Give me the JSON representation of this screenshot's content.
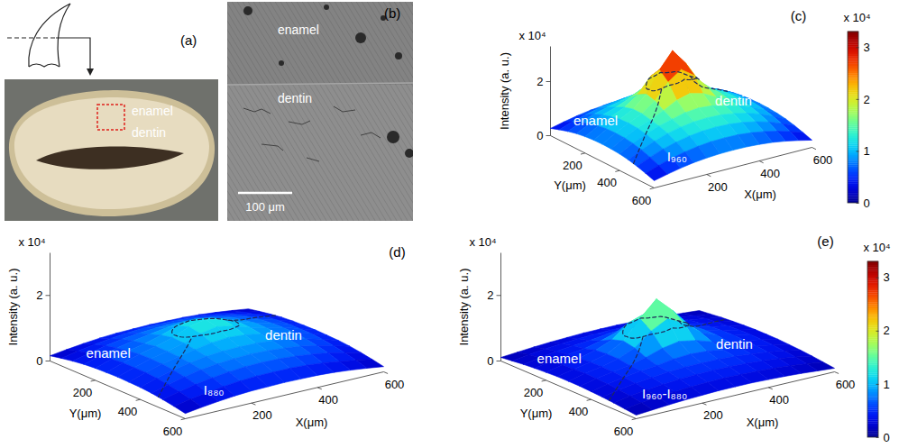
{
  "images": [
    {
      "panel": "(a)",
      "labels": [
        "enamel",
        "dentin"
      ]
    },
    {
      "panel": "(b)",
      "labels": [
        "enamel",
        "dentin"
      ],
      "scale_bar": "100 μm"
    }
  ],
  "chart_data": [
    {
      "type": "surface",
      "panel": "(c)",
      "xlabel": "X(μm)",
      "ylabel": "Y(μm)",
      "zlabel": "Intensity (a. u.)",
      "z_multiplier": "x 10⁴",
      "x": [
        0,
        50,
        100,
        150,
        200,
        250,
        300,
        350,
        400,
        450,
        500,
        550,
        600
      ],
      "y": [
        0,
        50,
        100,
        150,
        200,
        250,
        300,
        350,
        400,
        450,
        500,
        550,
        600
      ],
      "z": [
        [
          0.27,
          0.38,
          0.48,
          0.56,
          0.61,
          0.64,
          0.65,
          0.64,
          0.61,
          0.56,
          0.48,
          0.38,
          0.27
        ],
        [
          0.38,
          0.55,
          0.69,
          0.8,
          0.88,
          0.93,
          0.94,
          0.93,
          0.88,
          0.8,
          0.69,
          0.55,
          0.38
        ],
        [
          0.48,
          0.69,
          0.87,
          1.0,
          1.1,
          1.21,
          1.25,
          1.21,
          1.1,
          1.0,
          0.87,
          0.69,
          0.48
        ],
        [
          0.56,
          0.8,
          1.0,
          1.16,
          1.36,
          1.6,
          1.73,
          1.6,
          1.36,
          1.16,
          1.0,
          0.8,
          0.56
        ],
        [
          0.61,
          0.88,
          1.1,
          1.32,
          1.66,
          2.22,
          2.46,
          2.22,
          1.66,
          1.32,
          1.1,
          0.88,
          0.61
        ],
        [
          0.64,
          0.93,
          1.16,
          1.41,
          1.84,
          2.61,
          3.2,
          2.61,
          1.84,
          1.41,
          1.16,
          0.93,
          0.64
        ],
        [
          0.65,
          0.94,
          1.18,
          1.41,
          1.75,
          2.32,
          2.66,
          2.32,
          1.75,
          1.41,
          1.18,
          0.94,
          0.65
        ],
        [
          0.64,
          0.93,
          1.16,
          1.34,
          1.56,
          1.81,
          1.94,
          1.81,
          1.56,
          1.34,
          1.16,
          0.93,
          0.64
        ],
        [
          0.61,
          0.88,
          1.1,
          1.27,
          1.4,
          1.52,
          1.56,
          1.52,
          1.4,
          1.27,
          1.1,
          0.88,
          0.61
        ],
        [
          0.56,
          0.8,
          1.0,
          1.16,
          1.27,
          1.34,
          1.36,
          1.34,
          1.27,
          1.16,
          1.0,
          0.8,
          0.56
        ],
        [
          0.48,
          0.69,
          0.87,
          1.0,
          1.1,
          1.16,
          1.18,
          1.16,
          1.1,
          1.0,
          0.87,
          0.69,
          0.48
        ],
        [
          0.38,
          0.55,
          0.69,
          0.8,
          0.88,
          0.93,
          0.94,
          0.93,
          0.88,
          0.8,
          0.69,
          0.55,
          0.38
        ],
        [
          0.27,
          0.38,
          0.48,
          0.56,
          0.61,
          0.64,
          0.65,
          0.64,
          0.61,
          0.56,
          0.48,
          0.38,
          0.27
        ]
      ],
      "xlim": [
        0,
        600
      ],
      "xticks": [
        200,
        400,
        600
      ],
      "ylim": [
        0,
        600
      ],
      "yticks": [
        200,
        400,
        600
      ],
      "zlim": [
        0,
        3.3
      ],
      "zticks": [
        0,
        2
      ],
      "clim": [
        0,
        3.3
      ],
      "colorbar_ticks": [
        0,
        1,
        2,
        3
      ],
      "colorbar_multiplier": "x 10⁴",
      "annotations": [
        {
          "text": "enamel",
          "x": 40,
          "y": 200
        },
        {
          "text": "dentin",
          "x": 420,
          "y": 420
        },
        {
          "text": "I₉₆₀",
          "x": 100,
          "y": 580
        }
      ],
      "boundary": [
        [
          [
            0,
            480
          ],
          [
            228,
            295
          ]
        ],
        [
          [
            385,
            225
          ],
          [
            600,
            120
          ]
        ]
      ],
      "region": {
        "center": [
          300,
          250
        ],
        "radii": [
          90,
          70
        ]
      }
    },
    {
      "type": "surface",
      "panel": "(d)",
      "xlabel": "X(μm)",
      "ylabel": "Y(μm)",
      "zlabel": "Intensity (a. u.)",
      "z_multiplier": "x 10⁴",
      "x": [
        0,
        50,
        100,
        150,
        200,
        250,
        300,
        350,
        400,
        450,
        500,
        550,
        600
      ],
      "y": [
        0,
        50,
        100,
        150,
        200,
        250,
        300,
        350,
        400,
        450,
        500,
        550,
        600
      ],
      "z": [
        [
          0.16,
          0.23,
          0.29,
          0.34,
          0.37,
          0.38,
          0.39,
          0.38,
          0.37,
          0.34,
          0.29,
          0.23,
          0.16
        ],
        [
          0.23,
          0.33,
          0.41,
          0.48,
          0.53,
          0.56,
          0.56,
          0.56,
          0.53,
          0.48,
          0.41,
          0.33,
          0.23
        ],
        [
          0.29,
          0.41,
          0.52,
          0.6,
          0.66,
          0.7,
          0.71,
          0.7,
          0.66,
          0.6,
          0.52,
          0.41,
          0.29
        ],
        [
          0.34,
          0.48,
          0.6,
          0.7,
          0.78,
          0.86,
          0.91,
          0.86,
          0.78,
          0.7,
          0.6,
          0.48,
          0.34
        ],
        [
          0.37,
          0.53,
          0.66,
          0.76,
          0.9,
          1.06,
          1.14,
          1.06,
          0.9,
          0.76,
          0.66,
          0.53,
          0.37
        ],
        [
          0.38,
          0.56,
          0.7,
          0.82,
          0.97,
          1.18,
          1.29,
          1.18,
          0.97,
          0.82,
          0.7,
          0.56,
          0.38
        ],
        [
          0.39,
          0.56,
          0.71,
          0.82,
          0.95,
          1.12,
          1.21,
          1.12,
          0.95,
          0.82,
          0.71,
          0.56,
          0.39
        ],
        [
          0.38,
          0.56,
          0.7,
          0.8,
          0.9,
          0.99,
          1.03,
          0.99,
          0.9,
          0.8,
          0.7,
          0.56,
          0.38
        ],
        [
          0.37,
          0.53,
          0.66,
          0.76,
          0.84,
          0.88,
          0.89,
          0.88,
          0.84,
          0.76,
          0.66,
          0.53,
          0.37
        ],
        [
          0.34,
          0.48,
          0.6,
          0.7,
          0.76,
          0.8,
          0.82,
          0.8,
          0.76,
          0.7,
          0.6,
          0.48,
          0.34
        ],
        [
          0.29,
          0.41,
          0.52,
          0.6,
          0.66,
          0.7,
          0.71,
          0.7,
          0.66,
          0.6,
          0.52,
          0.41,
          0.29
        ],
        [
          0.23,
          0.33,
          0.41,
          0.48,
          0.53,
          0.56,
          0.56,
          0.56,
          0.53,
          0.48,
          0.41,
          0.33,
          0.23
        ],
        [
          0.16,
          0.23,
          0.29,
          0.34,
          0.37,
          0.38,
          0.39,
          0.38,
          0.37,
          0.34,
          0.29,
          0.23,
          0.16
        ]
      ],
      "xlim": [
        0,
        600
      ],
      "xticks": [
        200,
        400,
        600
      ],
      "ylim": [
        0,
        600
      ],
      "yticks": [
        200,
        400,
        600
      ],
      "zlim": [
        0,
        3.3
      ],
      "zticks": [
        0,
        2
      ],
      "clim": [
        0,
        3.3
      ],
      "annotations": [
        {
          "text": "enamel",
          "x": 40,
          "y": 200
        },
        {
          "text": "dentin",
          "x": 420,
          "y": 420
        },
        {
          "text": "I₈₈₀",
          "x": 100,
          "y": 580
        }
      ],
      "boundary": [
        [
          [
            0,
            480
          ],
          [
            228,
            295
          ]
        ],
        [
          [
            385,
            225
          ],
          [
            600,
            120
          ]
        ]
      ],
      "region": {
        "center": [
          300,
          250
        ],
        "radii": [
          90,
          70
        ]
      }
    },
    {
      "type": "surface",
      "panel": "(e)",
      "xlabel": "X(μm)",
      "ylabel": "Y(μm)",
      "zlabel": "Intensity (a. u.)",
      "z_multiplier": "x 10⁴",
      "x": [
        0,
        50,
        100,
        150,
        200,
        250,
        300,
        350,
        400,
        450,
        500,
        550,
        600
      ],
      "y": [
        0,
        50,
        100,
        150,
        200,
        250,
        300,
        350,
        400,
        450,
        500,
        550,
        600
      ],
      "z": [
        [
          0.11,
          0.15,
          0.19,
          0.22,
          0.24,
          0.26,
          0.26,
          0.26,
          0.24,
          0.22,
          0.19,
          0.15,
          0.11
        ],
        [
          0.15,
          0.22,
          0.28,
          0.32,
          0.35,
          0.37,
          0.38,
          0.37,
          0.35,
          0.32,
          0.28,
          0.22,
          0.15
        ],
        [
          0.19,
          0.28,
          0.35,
          0.4,
          0.44,
          0.51,
          0.54,
          0.51,
          0.44,
          0.4,
          0.35,
          0.28,
          0.19
        ],
        [
          0.22,
          0.32,
          0.4,
          0.46,
          0.58,
          0.74,
          0.82,
          0.74,
          0.58,
          0.46,
          0.4,
          0.32,
          0.22
        ],
        [
          0.24,
          0.35,
          0.44,
          0.56,
          0.76,
          1.16,
          1.32,
          1.16,
          0.76,
          0.56,
          0.44,
          0.35,
          0.24
        ],
        [
          0.26,
          0.37,
          0.46,
          0.59,
          0.87,
          1.43,
          1.91,
          1.43,
          0.87,
          0.59,
          0.46,
          0.37,
          0.26
        ],
        [
          0.26,
          0.38,
          0.47,
          0.59,
          0.8,
          1.2,
          1.45,
          1.2,
          0.8,
          0.59,
          0.47,
          0.38,
          0.26
        ],
        [
          0.26,
          0.37,
          0.46,
          0.54,
          0.66,
          0.82,
          0.91,
          0.82,
          0.66,
          0.54,
          0.46,
          0.37,
          0.26
        ],
        [
          0.24,
          0.35,
          0.44,
          0.51,
          0.56,
          0.64,
          0.67,
          0.64,
          0.56,
          0.51,
          0.44,
          0.35,
          0.24
        ],
        [
          0.22,
          0.32,
          0.4,
          0.46,
          0.51,
          0.54,
          0.54,
          0.54,
          0.51,
          0.46,
          0.4,
          0.32,
          0.22
        ],
        [
          0.19,
          0.28,
          0.35,
          0.4,
          0.44,
          0.46,
          0.47,
          0.46,
          0.44,
          0.4,
          0.35,
          0.28,
          0.19
        ],
        [
          0.15,
          0.22,
          0.28,
          0.32,
          0.35,
          0.37,
          0.38,
          0.37,
          0.35,
          0.32,
          0.28,
          0.22,
          0.15
        ],
        [
          0.11,
          0.15,
          0.19,
          0.22,
          0.24,
          0.26,
          0.26,
          0.26,
          0.24,
          0.22,
          0.19,
          0.15,
          0.11
        ]
      ],
      "xlim": [
        0,
        600
      ],
      "xticks": [
        200,
        400,
        600
      ],
      "ylim": [
        0,
        600
      ],
      "yticks": [
        200,
        400,
        600
      ],
      "zlim": [
        0,
        3.3
      ],
      "zticks": [
        0,
        2
      ],
      "clim": [
        0,
        3.3
      ],
      "colorbar_ticks": [
        0,
        1,
        2,
        3
      ],
      "colorbar_multiplier": "x 10⁴",
      "annotations": [
        {
          "text": "enamel",
          "x": 40,
          "y": 200
        },
        {
          "text": "dentin",
          "x": 420,
          "y": 420
        },
        {
          "text": "I₉₆₀-I₈₈₀",
          "x": 100,
          "y": 580
        }
      ],
      "boundary": [
        [
          [
            0,
            480
          ],
          [
            228,
            295
          ]
        ],
        [
          [
            385,
            225
          ],
          [
            600,
            120
          ]
        ]
      ],
      "region": {
        "center": [
          300,
          250
        ],
        "radii": [
          90,
          70
        ]
      }
    }
  ]
}
